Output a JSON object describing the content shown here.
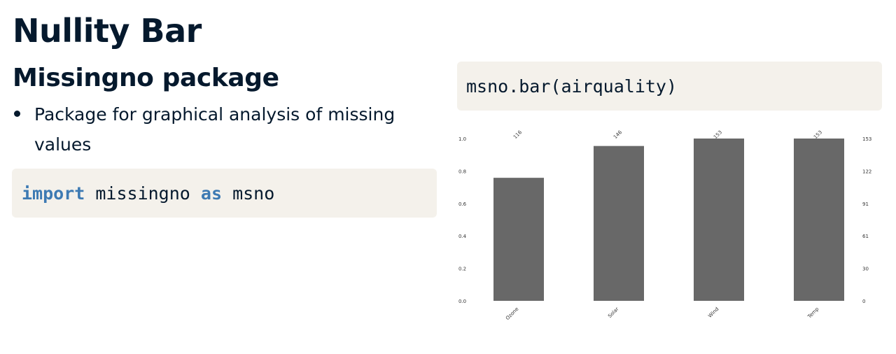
{
  "slide": {
    "title": "Nullity Bar",
    "subtitle": "Missingno package",
    "bullets": [
      "Package for graphical analysis of missing values"
    ]
  },
  "code_left": {
    "import_kw": "import",
    "module": "missingno",
    "as_kw": "as",
    "alias": "msno"
  },
  "code_right": {
    "text": "msno.bar(airquality)"
  },
  "colors": {
    "text": "#05192d",
    "code_bg": "#f4f1eb",
    "keyword": "#3d7ab3",
    "bar": "#686868"
  },
  "chart_data": {
    "type": "bar",
    "categories": [
      "Ozone",
      "Solar",
      "Wind",
      "Temp"
    ],
    "values": [
      116,
      146,
      153,
      153
    ],
    "fractions": [
      0.758,
      0.954,
      1.0,
      1.0
    ],
    "bar_labels": [
      "116",
      "146",
      "153",
      "153"
    ],
    "left_ticks": [
      "0.0",
      "0.2",
      "0.4",
      "0.6",
      "0.8",
      "1.0"
    ],
    "right_ticks": [
      "0",
      "30",
      "61",
      "91",
      "122",
      "153"
    ],
    "ylim": [
      0,
      1.0
    ],
    "right_ylim": [
      0,
      153
    ],
    "grid": false,
    "title": "",
    "xlabel": "",
    "ylabel": ""
  }
}
